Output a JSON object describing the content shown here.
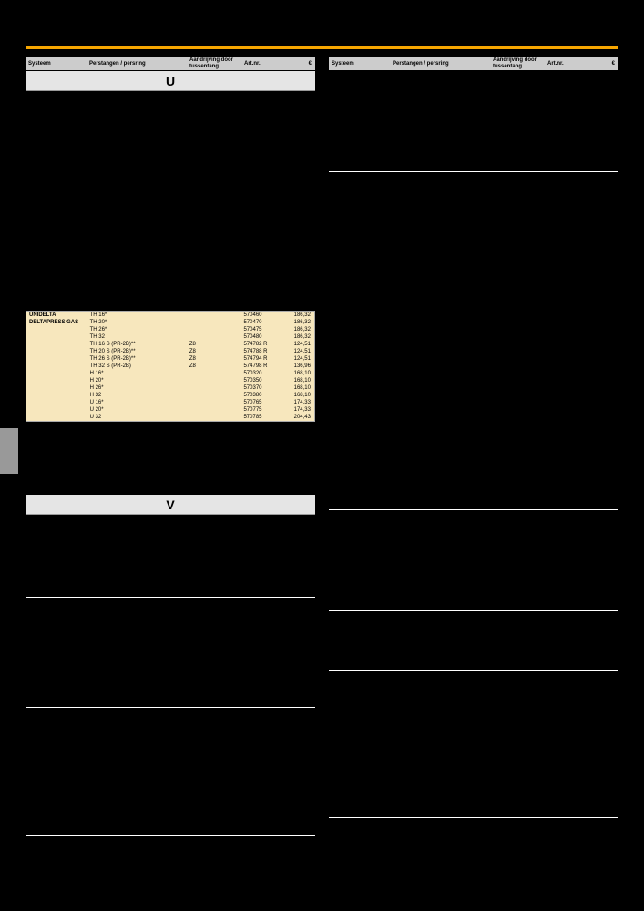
{
  "headers": {
    "c1": "Systeem",
    "c2": "Perstangen / persring",
    "c3": "Aandrijving door tussentang",
    "c4": "Art.nr.",
    "c5": "€"
  },
  "section_letters": {
    "u": "U",
    "v": "V"
  },
  "highlighted_block": {
    "title1": "UNIDELTA",
    "title2": "DELTAPRESS GAS",
    "rows": [
      {
        "c2": "TH 16*",
        "c3": "",
        "c4": "570460",
        "c5": "186,32"
      },
      {
        "c2": "TH 20*",
        "c3": "",
        "c4": "570470",
        "c5": "186,32"
      },
      {
        "c2": "TH 26*",
        "c3": "",
        "c4": "570475",
        "c5": "186,32"
      },
      {
        "c2": "TH 32",
        "c3": "",
        "c4": "570480",
        "c5": "186,32"
      },
      {
        "c2": "TH 16 S (PR-2B)**",
        "c3": "Z8",
        "c4": "574782 R",
        "c5": "124,51"
      },
      {
        "c2": "TH 20 S (PR-2B)**",
        "c3": "Z8",
        "c4": "574788 R",
        "c5": "124,51"
      },
      {
        "c2": "TH 26 S (PR-2B)**",
        "c3": "Z8",
        "c4": "574794 R",
        "c5": "124,51"
      },
      {
        "c2": "TH 32 S (PR-2B)",
        "c3": "Z8",
        "c4": "574798 R",
        "c5": "136,96"
      },
      {
        "c2": "H 16*",
        "c3": "",
        "c4": "570320",
        "c5": "168,10"
      },
      {
        "c2": "H 20*",
        "c3": "",
        "c4": "570350",
        "c5": "168,10"
      },
      {
        "c2": "H 26*",
        "c3": "",
        "c4": "570370",
        "c5": "168,10"
      },
      {
        "c2": "H 32",
        "c3": "",
        "c4": "570380",
        "c5": "168,10"
      },
      {
        "c2": "U 16*",
        "c3": "",
        "c4": "570765",
        "c5": "174,33"
      },
      {
        "c2": "U 20*",
        "c3": "",
        "c4": "570775",
        "c5": "174,33"
      },
      {
        "c2": "U 32",
        "c3": "",
        "c4": "570785",
        "c5": "204,43"
      }
    ]
  },
  "colors": {
    "orange": "#f7a600",
    "highlight_bg": "#f7e7bd",
    "header_bg": "#cccccc",
    "section_bg": "#e5e5e5"
  }
}
